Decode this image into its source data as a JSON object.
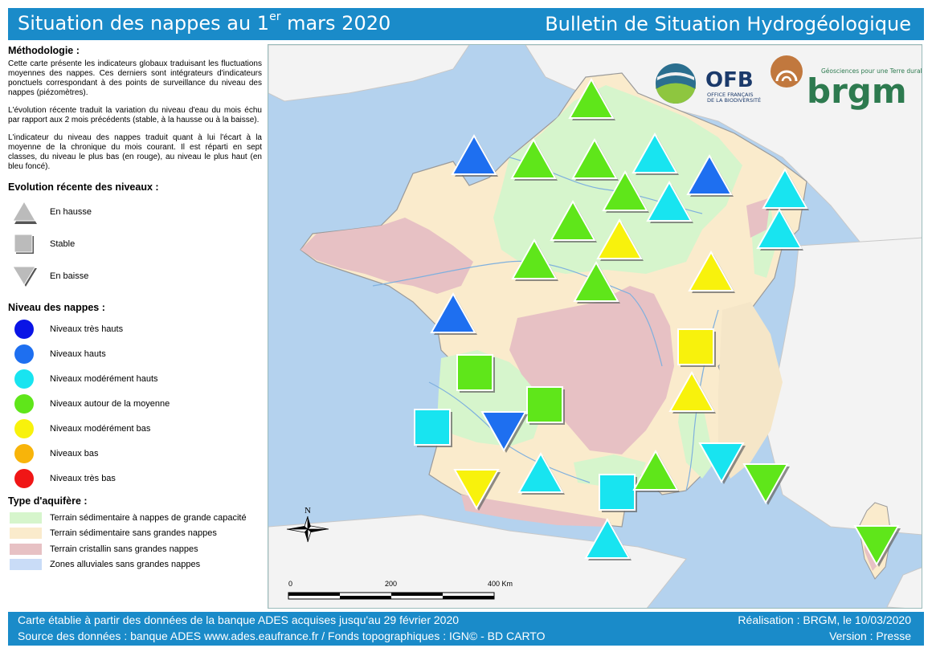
{
  "header": {
    "title_main": "Situation des nappes au 1",
    "title_sup": "er",
    "title_end": " mars 2020",
    "title_right": "Bulletin de Situation Hydrogéologique"
  },
  "legend": {
    "methodologie_title": "Méthodologie :",
    "methodologie_p1": "Cette carte présente les indicateurs globaux traduisant les fluctuations moyennes des nappes. Ces derniers sont intégrateurs d'indicateurs ponctuels correspondant à des points de surveillance du niveau des nappes (piézomètres).",
    "methodologie_p2": "L'évolution récente traduit la variation du niveau d'eau du mois échu par rapport aux 2 mois précédents (stable, à la hausse ou à la baisse).",
    "methodologie_p3": "L'indicateur du niveau des nappes traduit quant à lui l'écart à la moyenne de la chronique du mois courant. Il est réparti en sept classes, du niveau le plus bas (en rouge), au niveau le plus haut (en bleu foncé).",
    "evolution_title": "Evolution récente des niveaux :",
    "evolution_items": [
      {
        "label": "En hausse",
        "shape": "triangle-up"
      },
      {
        "label": "Stable",
        "shape": "square"
      },
      {
        "label": "En baisse",
        "shape": "triangle-down"
      }
    ],
    "niveau_title": "Niveau des nappes :",
    "niveau_items": [
      {
        "label": "Niveaux très hauts",
        "color": "#0a14e6"
      },
      {
        "label": "Niveaux hauts",
        "color": "#1e6ff0"
      },
      {
        "label": "Niveaux modérément hauts",
        "color": "#18e4f0"
      },
      {
        "label": "Niveaux autour de la moyenne",
        "color": "#5fe61a"
      },
      {
        "label": "Niveaux modérément bas",
        "color": "#f8f20c"
      },
      {
        "label": "Niveaux bas",
        "color": "#f8b40a"
      },
      {
        "label": "Niveaux très bas",
        "color": "#f01616"
      }
    ],
    "aquifere_title": "Type d'aquifère :",
    "aquifere_items": [
      {
        "label": "Terrain sédimentaire à nappes de grande capacité",
        "color": "#d6f5cc"
      },
      {
        "label": "Terrain sédimentaire sans grandes nappes",
        "color": "#faebcc"
      },
      {
        "label": "Terrain cristallin sans grandes nappes",
        "color": "#e7c1c4"
      },
      {
        "label": "Zones alluviales sans grandes nappes",
        "color": "#c9dcf7"
      }
    ]
  },
  "map": {
    "north_label": "N",
    "scale_labels": [
      "0",
      "200",
      "400 Km"
    ],
    "logos": {
      "ofb_name": "OFB",
      "ofb_sub1": "OFFICE FRANÇAIS",
      "ofb_sub2": "DE LA BIODIVERSITÉ",
      "brgm_tagline": "Géosciences pour une Terre durable",
      "brgm_name": "brgm"
    },
    "colors": {
      "sea": "#b4d2ee",
      "land_neighbors": "#f3f3f3",
      "sedimentary_large": "#d6f5cc",
      "sedimentary_small": "#faebcc",
      "crystalline": "#e7c1c4",
      "rivers": "#7fb0de"
    },
    "markers": [
      {
        "trend": "up",
        "level": "moyenne"
      },
      {
        "trend": "up",
        "level": "hauts"
      },
      {
        "trend": "up",
        "level": "moyenne"
      },
      {
        "trend": "up",
        "level": "moyenne"
      },
      {
        "trend": "up",
        "level": "moderement-hauts"
      },
      {
        "trend": "up",
        "level": "hauts"
      },
      {
        "trend": "up",
        "level": "moyenne"
      },
      {
        "trend": "up",
        "level": "moderement-hauts"
      },
      {
        "trend": "up",
        "level": "moderement-hauts"
      },
      {
        "trend": "up",
        "level": "moyenne"
      },
      {
        "trend": "up",
        "level": "moderement-bas"
      },
      {
        "trend": "up",
        "level": "moderement-hauts"
      },
      {
        "trend": "up",
        "level": "moyenne"
      },
      {
        "trend": "up",
        "level": "moyenne"
      },
      {
        "trend": "up",
        "level": "moderement-bas"
      },
      {
        "trend": "up",
        "level": "hauts"
      },
      {
        "trend": "stable",
        "level": "moderement-bas"
      },
      {
        "trend": "stable",
        "level": "moyenne"
      },
      {
        "trend": "stable",
        "level": "moyenne"
      },
      {
        "trend": "up",
        "level": "moderement-bas"
      },
      {
        "trend": "stable",
        "level": "moderement-hauts"
      },
      {
        "trend": "down",
        "level": "hauts"
      },
      {
        "trend": "down",
        "level": "moderement-hauts"
      },
      {
        "trend": "down",
        "level": "moyenne"
      },
      {
        "trend": "down",
        "level": "moderement-bas"
      },
      {
        "trend": "up",
        "level": "moderement-hauts"
      },
      {
        "trend": "stable",
        "level": "moderement-hauts"
      },
      {
        "trend": "up",
        "level": "moyenne"
      },
      {
        "trend": "up",
        "level": "moderement-hauts"
      },
      {
        "trend": "down",
        "level": "moyenne"
      }
    ]
  },
  "footer": {
    "line1_left": "Carte établie à partir des données de la banque ADES acquises jusqu'au 29 février 2020",
    "line2_left": "Source des données : banque ADES www.ades.eaufrance.fr / Fonds topographiques : IGN© - BD CARTO",
    "line1_right": "Réalisation : BRGM, le 10/03/2020",
    "line2_right": "Version : Presse"
  }
}
